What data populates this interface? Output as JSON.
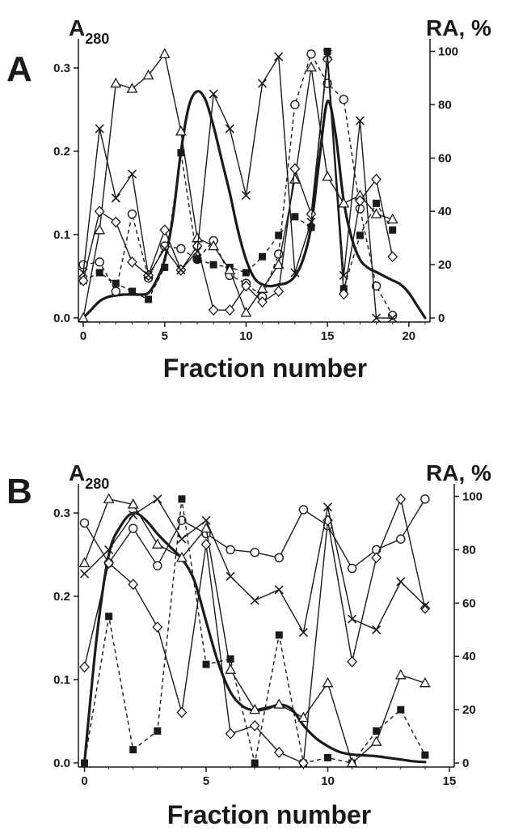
{
  "chart_data": [
    {
      "type": "line",
      "panel_label": "A",
      "left_axis_label": "A",
      "left_axis_label_sub": "280",
      "right_axis_label": "RA, %",
      "xlabel": "Fraction number",
      "xlim": [
        -0.3,
        21.3
      ],
      "ylim_left": [
        -0.005,
        0.335
      ],
      "ylim_right": [
        -1.5,
        104.7
      ],
      "x_ticks": [
        0,
        5,
        10,
        15,
        20
      ],
      "x_tick_labels": [
        "0",
        "5",
        "10",
        "15",
        "20"
      ],
      "left_ticks": [
        0.0,
        0.1,
        0.2,
        0.3
      ],
      "left_tick_labels": [
        "0.0",
        "0.1",
        "0.2",
        "0.3"
      ],
      "right_ticks": [
        0,
        20,
        40,
        60,
        80,
        100
      ],
      "right_tick_labels": [
        "0",
        "20",
        "40",
        "60",
        "80",
        "100"
      ],
      "series": [
        {
          "marker": "none",
          "line": "solid-thick",
          "axis": "left",
          "smooth": true,
          "x": [
            0,
            0.5,
            1,
            1.5,
            2,
            2.5,
            3,
            3.5,
            4,
            4.5,
            5,
            5.5,
            6,
            6.5,
            7,
            7.5,
            8,
            8.5,
            9,
            9.5,
            10,
            10.5,
            11,
            11.5,
            12,
            12.5,
            13,
            13.5,
            14,
            14.5,
            15,
            15.5,
            16,
            16.5,
            17,
            17.5,
            18,
            18.5,
            19,
            19.5,
            20,
            20.5,
            21
          ],
          "y": [
            0.0,
            0.01,
            0.02,
            0.025,
            0.027,
            0.028,
            0.028,
            0.028,
            0.03,
            0.045,
            0.07,
            0.12,
            0.2,
            0.255,
            0.272,
            0.262,
            0.23,
            0.19,
            0.15,
            0.105,
            0.07,
            0.048,
            0.04,
            0.038,
            0.04,
            0.042,
            0.05,
            0.07,
            0.11,
            0.19,
            0.26,
            0.22,
            0.14,
            0.095,
            0.07,
            0.06,
            0.055,
            0.05,
            0.045,
            0.04,
            0.03,
            0.015,
            0.0
          ]
        },
        {
          "marker": "open-circle",
          "line": "dashed",
          "axis": "right",
          "x": [
            0,
            1,
            2,
            3,
            4,
            5,
            6,
            7,
            8,
            9,
            10,
            11,
            12,
            13,
            14,
            15,
            16,
            17,
            18,
            19
          ],
          "y": [
            20,
            21,
            10,
            39,
            15,
            27,
            26,
            22,
            29,
            16,
            13,
            8,
            24,
            80,
            99,
            88,
            82,
            41,
            12,
            1
          ]
        },
        {
          "marker": "filled-square",
          "line": "dashed",
          "axis": "right",
          "x": [
            0,
            1,
            2,
            3,
            4,
            5,
            6,
            7,
            8,
            9,
            10,
            11,
            12,
            13,
            14,
            15,
            16,
            17,
            18,
            19
          ],
          "y": [
            14,
            17,
            13,
            10,
            7,
            19,
            62,
            22,
            20,
            19,
            17,
            23,
            31,
            38,
            34,
            100,
            11,
            31,
            43,
            33
          ]
        },
        {
          "marker": "open-triangle",
          "line": "solid",
          "axis": "right",
          "x": [
            0,
            1,
            2,
            3,
            4,
            5,
            6,
            7,
            8,
            9,
            10,
            11,
            12,
            13,
            14,
            15,
            16,
            17,
            18,
            19
          ],
          "y": [
            0,
            33,
            88,
            86,
            91,
            99,
            70,
            30,
            27,
            18,
            2,
            11,
            20,
            52,
            94,
            53,
            43,
            46,
            39,
            37
          ]
        },
        {
          "marker": "open-diamond",
          "line": "solid",
          "axis": "right",
          "x": [
            0,
            1,
            2,
            3,
            4,
            5,
            6,
            7,
            8,
            9,
            10,
            11,
            12,
            13,
            14,
            15,
            16,
            17,
            18,
            19
          ],
          "y": [
            14,
            40,
            36,
            21,
            16,
            33,
            18,
            27,
            3,
            3,
            12,
            6,
            10,
            56,
            39,
            97,
            9,
            44,
            52,
            23
          ]
        },
        {
          "marker": "cross",
          "line": "solid",
          "axis": "right",
          "x": [
            0,
            1,
            2,
            3,
            4,
            5,
            6,
            7,
            8,
            9,
            10,
            11,
            12,
            13,
            14,
            15,
            16,
            17,
            18,
            19
          ],
          "y": [
            17,
            71,
            45,
            54,
            16,
            26,
            18,
            25,
            84,
            71,
            46,
            88,
            98,
            17,
            36,
            99,
            16,
            74,
            0,
            0
          ]
        }
      ]
    },
    {
      "type": "line",
      "panel_label": "B",
      "left_axis_label": "A",
      "left_axis_label_sub": "280",
      "right_axis_label": "RA, %",
      "xlabel": "Fraction number",
      "xlim": [
        -0.25,
        15.2
      ],
      "ylim_left": [
        -0.005,
        0.335
      ],
      "ylim_right": [
        -1.5,
        104.7
      ],
      "x_ticks": [
        0,
        5,
        10,
        15
      ],
      "x_tick_labels": [
        "0",
        "5",
        "10",
        "15"
      ],
      "left_ticks": [
        0.0,
        0.1,
        0.2,
        0.3
      ],
      "left_tick_labels": [
        "0.0",
        "0.1",
        "0.2",
        "0.3"
      ],
      "right_ticks": [
        0,
        20,
        40,
        60,
        80,
        100
      ],
      "right_tick_labels": [
        "0",
        "20",
        "40",
        "60",
        "80",
        "100"
      ],
      "series": [
        {
          "marker": "none",
          "line": "solid-thick",
          "axis": "left",
          "smooth": true,
          "x": [
            0,
            0.5,
            1,
            1.5,
            2,
            2.5,
            3,
            3.5,
            4,
            4.5,
            5,
            5.5,
            6,
            6.5,
            7,
            7.5,
            8,
            8.5,
            9,
            9.5,
            10,
            10.5,
            11,
            11.5,
            12,
            12.5,
            13,
            13.5,
            14
          ],
          "y": [
            0.0,
            0.15,
            0.25,
            0.285,
            0.3,
            0.292,
            0.275,
            0.26,
            0.245,
            0.22,
            0.17,
            0.12,
            0.085,
            0.068,
            0.063,
            0.065,
            0.07,
            0.065,
            0.045,
            0.03,
            0.02,
            0.013,
            0.01,
            0.009,
            0.008,
            0.006,
            0.004,
            0.002,
            0.001
          ]
        },
        {
          "marker": "open-circle",
          "line": "solid",
          "axis": "right",
          "x": [
            0,
            1,
            2,
            3,
            4,
            5,
            6,
            7,
            8,
            9,
            10,
            11,
            12,
            13,
            14
          ],
          "y": [
            90,
            75,
            88,
            74,
            91,
            86,
            80,
            79,
            77,
            95,
            89,
            73,
            80,
            84,
            99
          ]
        },
        {
          "marker": "filled-square",
          "line": "dashed",
          "axis": "right",
          "x": [
            0,
            1,
            2,
            3,
            4,
            5,
            6,
            7,
            8,
            9,
            10,
            11,
            12,
            13,
            14
          ],
          "y": [
            0,
            55,
            5,
            12,
            99,
            37,
            39,
            0,
            48,
            0,
            2,
            0,
            12,
            20,
            3
          ]
        },
        {
          "marker": "open-triangle",
          "line": "solid",
          "axis": "right",
          "x": [
            0,
            1,
            2,
            3,
            4,
            5,
            6,
            7,
            8,
            9,
            10,
            11,
            12,
            13,
            14
          ],
          "y": [
            75,
            99,
            97,
            82,
            77,
            88,
            35,
            20,
            22,
            17,
            30,
            0,
            8,
            33,
            30
          ]
        },
        {
          "marker": "open-diamond",
          "line": "solid",
          "axis": "right",
          "x": [
            0,
            1,
            2,
            3,
            4,
            5,
            6,
            7,
            8,
            9,
            10,
            11,
            12,
            13,
            14
          ],
          "y": [
            36,
            75,
            67,
            51,
            19,
            82,
            11,
            14,
            4,
            0,
            91,
            38,
            77,
            99,
            58
          ]
        },
        {
          "marker": "cross",
          "line": "solid",
          "axis": "right",
          "x": [
            0,
            1,
            2,
            3,
            4,
            5,
            6,
            7,
            8,
            9,
            10,
            11,
            12,
            13,
            14
          ],
          "y": [
            71,
            80,
            93,
            99,
            84,
            91,
            70,
            61,
            65,
            49,
            96,
            54,
            50,
            68,
            59
          ]
        }
      ]
    }
  ]
}
